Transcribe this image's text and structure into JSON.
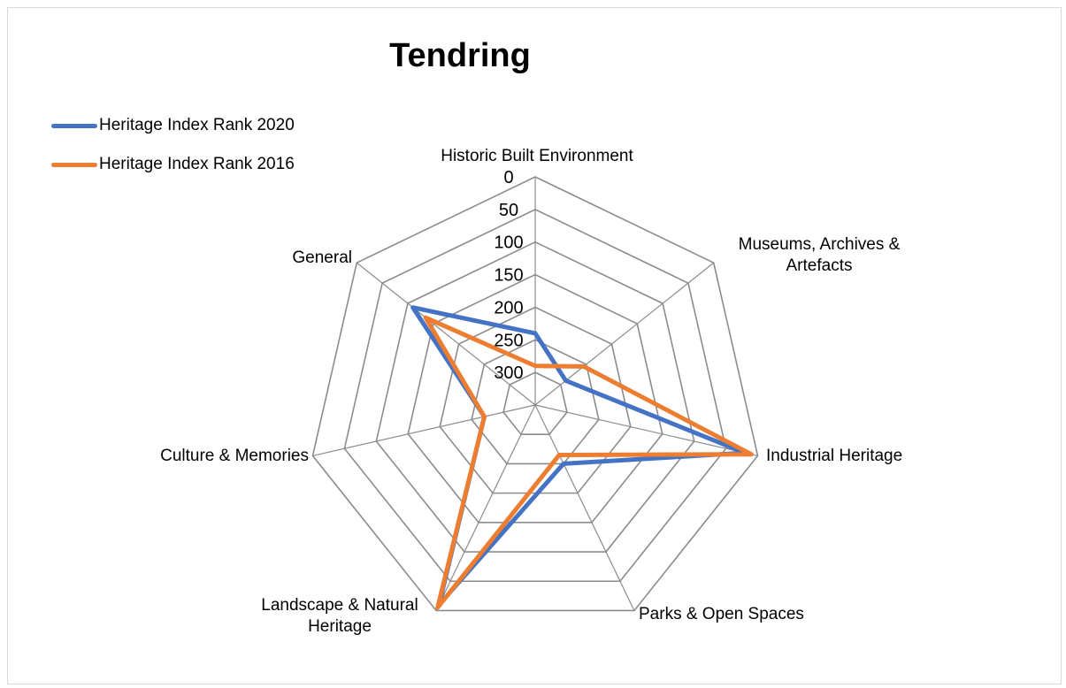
{
  "chart_data": {
    "type": "radar",
    "title": "Tendring",
    "categories": [
      "Historic Built Environment",
      "Museums, Archives & Artefacts",
      "Industrial Heritage",
      "Parks & Open Spaces",
      "Landscape & Natural Heritage",
      "Culture & Memories",
      "General"
    ],
    "radial_ticks": [
      "0",
      "50",
      "100",
      "150",
      "200",
      "250",
      "300"
    ],
    "rlim": [
      0,
      350
    ],
    "reversed": true,
    "grid": true,
    "legend_position": "top-left",
    "series": [
      {
        "name": "Heritage Index Rank 2020",
        "color": "#4472c4",
        "values": [
          240,
          290,
          20,
          250,
          10,
          270,
          110
        ]
      },
      {
        "name": "Heritage Index Rank 2016",
        "color": "#ed7d31",
        "values": [
          290,
          255,
          10,
          265,
          5,
          270,
          135
        ]
      }
    ]
  }
}
